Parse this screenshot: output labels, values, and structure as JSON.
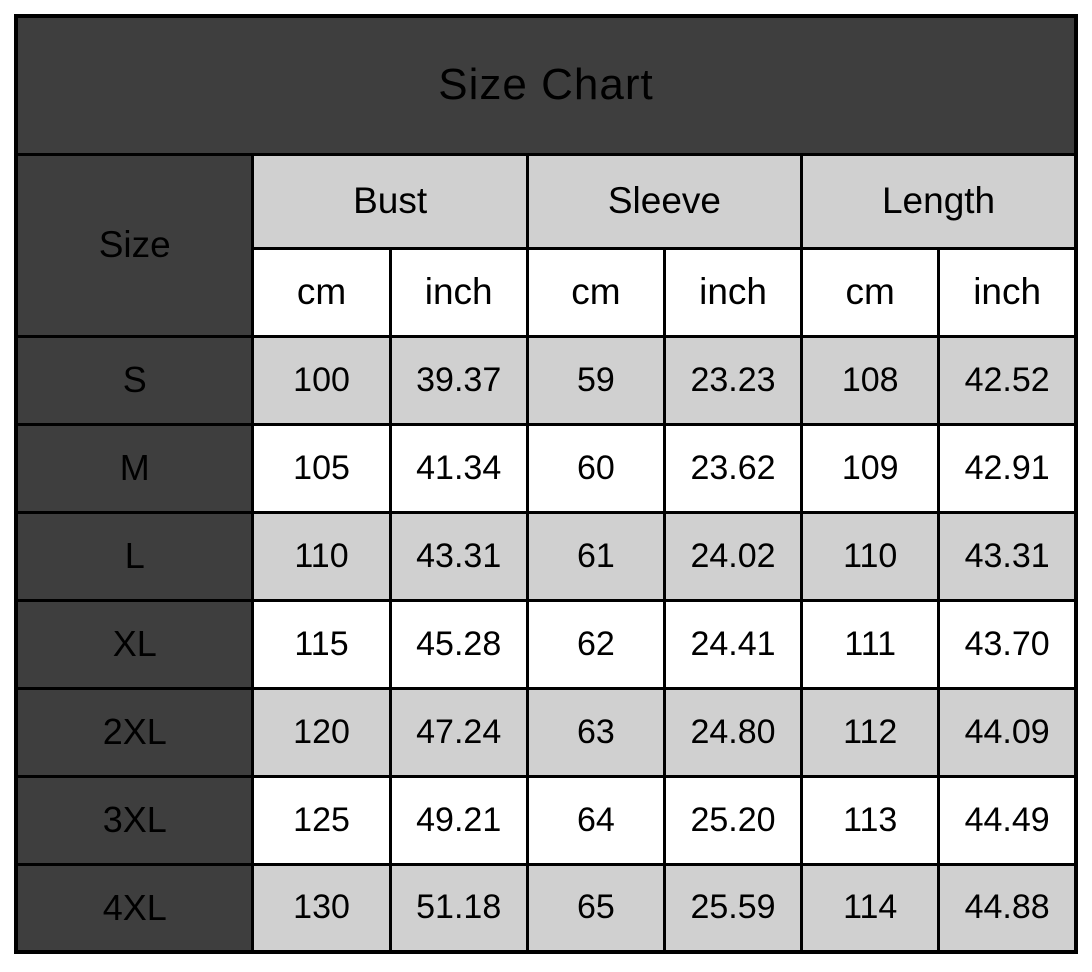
{
  "title": "Size Chart",
  "colors": {
    "header_bg": "#3e3e3e",
    "header_text": "#ffffff",
    "shaded_cell_bg": "#d0d0d0",
    "plain_cell_bg": "#ffffff",
    "border": "#000000",
    "data_text": "#000000"
  },
  "table": {
    "corner_label": "Size",
    "group_headers": [
      "Bust",
      "Sleeve",
      "Length"
    ],
    "unit_headers": [
      "cm",
      "inch",
      "cm",
      "inch",
      "cm",
      "inch"
    ],
    "rows": [
      {
        "size": "S",
        "values": [
          "100",
          "39.37",
          "59",
          "23.23",
          "108",
          "42.52"
        ]
      },
      {
        "size": "M",
        "values": [
          "105",
          "41.34",
          "60",
          "23.62",
          "109",
          "42.91"
        ]
      },
      {
        "size": "L",
        "values": [
          "110",
          "43.31",
          "61",
          "24.02",
          "110",
          "43.31"
        ]
      },
      {
        "size": "XL",
        "values": [
          "115",
          "45.28",
          "62",
          "24.41",
          "111",
          "43.70"
        ]
      },
      {
        "size": "2XL",
        "values": [
          "120",
          "47.24",
          "63",
          "24.80",
          "112",
          "44.09"
        ]
      },
      {
        "size": "3XL",
        "values": [
          "125",
          "49.21",
          "64",
          "25.20",
          "113",
          "44.49"
        ]
      },
      {
        "size": "4XL",
        "values": [
          "130",
          "51.18",
          "65",
          "25.59",
          "114",
          "44.88"
        ]
      }
    ]
  },
  "chart_data": {
    "type": "table",
    "title": "Size Chart",
    "columns": [
      "Size",
      "Bust cm",
      "Bust inch",
      "Sleeve cm",
      "Sleeve inch",
      "Length cm",
      "Length inch"
    ],
    "rows": [
      [
        "S",
        100,
        39.37,
        59,
        23.23,
        108,
        42.52
      ],
      [
        "M",
        105,
        41.34,
        60,
        23.62,
        109,
        42.91
      ],
      [
        "L",
        110,
        43.31,
        61,
        24.02,
        110,
        43.31
      ],
      [
        "XL",
        115,
        45.28,
        62,
        24.41,
        111,
        43.7
      ],
      [
        "2XL",
        120,
        47.24,
        63,
        24.8,
        112,
        44.09
      ],
      [
        "3XL",
        125,
        49.21,
        64,
        25.2,
        113,
        44.49
      ],
      [
        "4XL",
        130,
        51.18,
        65,
        25.59,
        114,
        44.88
      ]
    ]
  }
}
